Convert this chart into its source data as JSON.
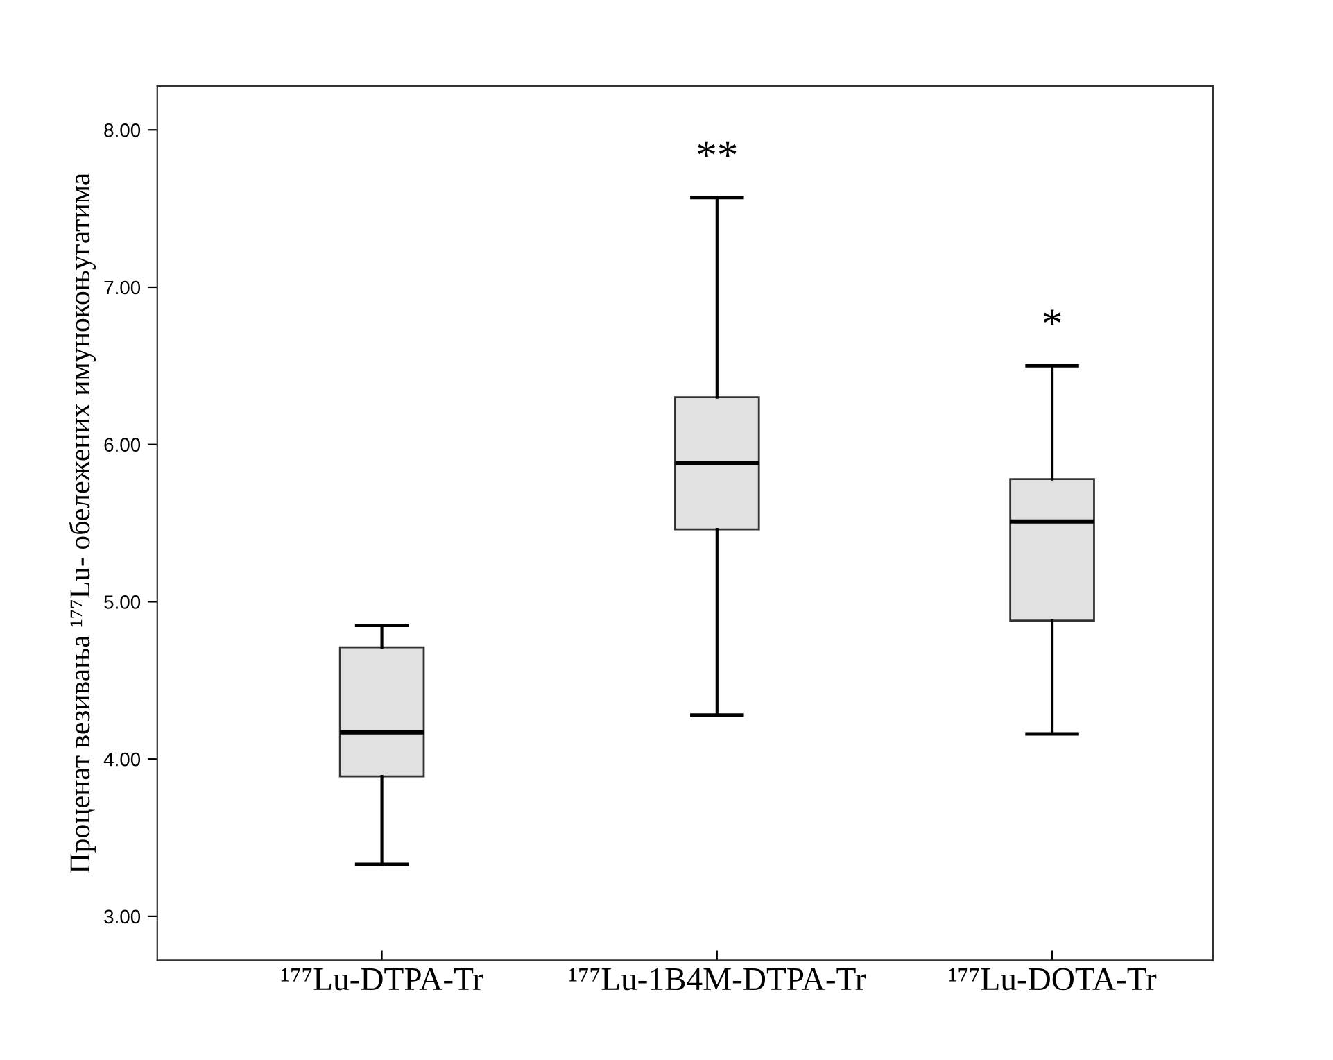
{
  "chart_data": {
    "type": "box",
    "ylabel": "Проценат везивања ¹⁷⁷Lu- обележених имунокоњугатима",
    "categories": [
      "¹⁷⁷Lu-DTPA-Tr",
      "¹⁷⁷Lu-1B4M-DTPA-Tr",
      "¹⁷⁷Lu-DOTA-Tr"
    ],
    "boxes": [
      {
        "low": 3.33,
        "q1": 3.89,
        "median": 4.17,
        "q3": 4.71,
        "high": 4.85
      },
      {
        "low": 4.28,
        "q1": 5.46,
        "median": 5.88,
        "q3": 6.3,
        "high": 7.57
      },
      {
        "low": 4.16,
        "q1": 4.88,
        "median": 5.51,
        "q3": 5.78,
        "high": 6.5
      }
    ],
    "colors": [
      "#e1e1e1",
      "#e1e1e1",
      "#e1e1e1"
    ],
    "ylim": [
      2.72,
      8.28
    ],
    "yticks": [
      {
        "value": 3,
        "label": "3.00"
      },
      {
        "value": 4,
        "label": "4.00"
      },
      {
        "value": 5,
        "label": "5.00"
      },
      {
        "value": 6,
        "label": "6.00"
      },
      {
        "value": 7,
        "label": "7.00"
      },
      {
        "value": 8,
        "label": "8.00"
      }
    ],
    "annotations": [
      "**",
      "*"
    ],
    "grid": false
  }
}
